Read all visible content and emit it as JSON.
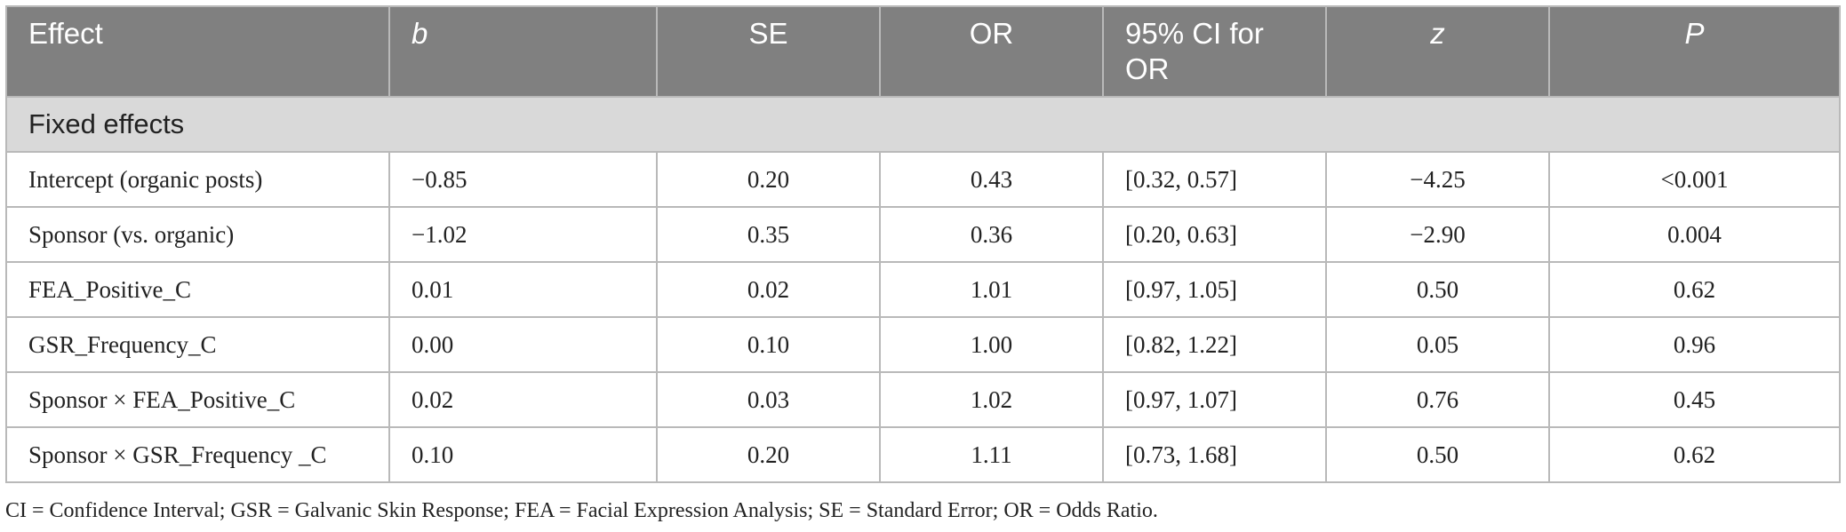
{
  "table": {
    "columns": [
      "Effect",
      "b",
      "SE",
      "OR",
      "95% CI for OR",
      "z",
      "P"
    ],
    "section_label": "Fixed effects",
    "rows": [
      [
        "Intercept (organic posts)",
        "−0.85",
        "0.20",
        "0.43",
        "[0.32, 0.57]",
        "−4.25",
        "<0.001"
      ],
      [
        "Sponsor (vs. organic)",
        "−1.02",
        "0.35",
        "0.36",
        "[0.20, 0.63]",
        "−2.90",
        "0.004"
      ],
      [
        "FEA_Positive_C",
        "0.01",
        "0.02",
        "1.01",
        "[0.97, 1.05]",
        "0.50",
        "0.62"
      ],
      [
        "GSR_Frequency_C",
        "0.00",
        "0.10",
        "1.00",
        "[0.82, 1.22]",
        "0.05",
        "0.96"
      ],
      [
        "Sponsor × FEA_Positive_C",
        "0.02",
        "0.03",
        "1.02",
        "[0.97, 1.07]",
        "0.76",
        "0.45"
      ],
      [
        "Sponsor × GSR_Frequency _C",
        "0.10",
        "0.20",
        "1.11",
        "[0.73, 1.68]",
        "0.50",
        "0.62"
      ]
    ]
  },
  "footnote": "CI = Confidence Interval; GSR = Galvanic Skin Response; FEA = Facial Expression Analysis; SE = Standard Error; OR = Odds Ratio.",
  "colors": {
    "header_bg": "#808080",
    "section_bg": "#d9d9d9",
    "border": "#b9b9b9"
  }
}
